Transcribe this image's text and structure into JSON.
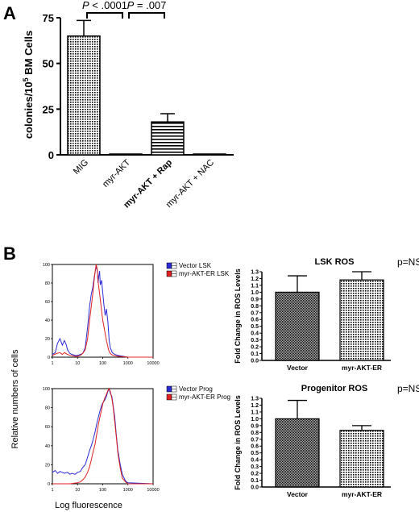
{
  "panel_labels": {
    "a": "A",
    "b": "B"
  },
  "colors": {
    "blue": "#2b2bd6",
    "red": "#e02020",
    "ink": "#000000"
  },
  "chart_data": [
    {
      "id": "colonies",
      "type": "bar",
      "ylabel_pre": "colonies/10",
      "ylabel_sup": "5",
      "ylabel_post": " BM Cells",
      "categories": [
        "MIG",
        "myr-AKT",
        "myr-AKT + Rap",
        "myr-AKT + NAC"
      ],
      "values": [
        65,
        0.3,
        18,
        0.2
      ],
      "errors": [
        8.5,
        0,
        4.5,
        0
      ],
      "patterns": [
        "dots",
        "none",
        "hlines",
        "none"
      ],
      "yticks": [
        "0",
        "25",
        "50",
        "75"
      ],
      "ylim": [
        0,
        75
      ],
      "annotations": [
        {
          "p_italic": "P",
          "rest": " < .0001",
          "from": 0,
          "to": 1
        },
        {
          "p_italic": "P",
          "rest": " = .007",
          "from": 1,
          "to": 2
        }
      ]
    },
    {
      "id": "lsk-hist",
      "type": "line",
      "ylabel": "Relative numbers of cells",
      "xlabel": "Log fluorescence",
      "xticks": [
        "1",
        "10",
        "100",
        "1000",
        "10000"
      ],
      "yticks": [
        "0",
        "20",
        "40",
        "60",
        "80",
        "100"
      ],
      "series": [
        {
          "name": "Vector LSK",
          "color": "#2b2bd6",
          "points": [
            [
              1,
              3
            ],
            [
              1.3,
              5
            ],
            [
              1.6,
              15
            ],
            [
              2,
              20
            ],
            [
              2.5,
              13
            ],
            [
              3,
              18
            ],
            [
              3.5,
              14
            ],
            [
              4,
              8
            ],
            [
              5,
              4
            ],
            [
              6,
              3
            ],
            [
              8,
              2
            ],
            [
              10,
              2
            ],
            [
              13,
              3
            ],
            [
              16,
              4
            ],
            [
              20,
              10
            ],
            [
              25,
              32
            ],
            [
              30,
              55
            ],
            [
              35,
              68
            ],
            [
              40,
              75
            ],
            [
              45,
              85
            ],
            [
              50,
              92
            ],
            [
              55,
              97
            ],
            [
              60,
              95
            ],
            [
              65,
              80
            ],
            [
              70,
              88
            ],
            [
              75,
              93
            ],
            [
              80,
              78
            ],
            [
              90,
              83
            ],
            [
              100,
              70
            ],
            [
              110,
              58
            ],
            [
              125,
              45
            ],
            [
              140,
              52
            ],
            [
              160,
              38
            ],
            [
              180,
              18
            ],
            [
              200,
              10
            ],
            [
              240,
              5
            ],
            [
              300,
              3
            ],
            [
              400,
              2
            ],
            [
              1000,
              0
            ],
            [
              10000,
              0
            ]
          ]
        },
        {
          "name": "myr-AKT-ER LSK",
          "color": "#e02020",
          "points": [
            [
              1,
              2
            ],
            [
              1.5,
              4
            ],
            [
              2,
              5
            ],
            [
              2.5,
              3
            ],
            [
              3,
              5
            ],
            [
              4,
              3
            ],
            [
              5,
              2
            ],
            [
              8,
              1
            ],
            [
              10,
              1
            ],
            [
              13,
              2
            ],
            [
              16,
              4
            ],
            [
              20,
              8
            ],
            [
              25,
              20
            ],
            [
              30,
              40
            ],
            [
              35,
              55
            ],
            [
              40,
              68
            ],
            [
              45,
              82
            ],
            [
              50,
              93
            ],
            [
              55,
              100
            ],
            [
              60,
              95
            ],
            [
              65,
              82
            ],
            [
              70,
              75
            ],
            [
              80,
              62
            ],
            [
              90,
              50
            ],
            [
              100,
              40
            ],
            [
              120,
              28
            ],
            [
              140,
              18
            ],
            [
              170,
              8
            ],
            [
              200,
              4
            ],
            [
              250,
              2
            ],
            [
              400,
              1
            ],
            [
              1000,
              0
            ],
            [
              10000,
              0
            ]
          ]
        }
      ]
    },
    {
      "id": "prog-hist",
      "type": "line",
      "xticks": [
        "1",
        "10",
        "100",
        "1000",
        "10000"
      ],
      "yticks": [
        "0",
        "20",
        "40",
        "60",
        "80",
        "100"
      ],
      "series": [
        {
          "name": "Vector Prog",
          "color": "#2b2bd6",
          "points": [
            [
              1,
              12
            ],
            [
              1.3,
              14
            ],
            [
              1.6,
              11
            ],
            [
              2,
              13
            ],
            [
              2.5,
              12
            ],
            [
              3,
              11
            ],
            [
              4,
              12
            ],
            [
              5,
              10
            ],
            [
              6,
              11
            ],
            [
              8,
              10
            ],
            [
              10,
              12
            ],
            [
              13,
              13
            ],
            [
              16,
              17
            ],
            [
              20,
              20
            ],
            [
              25,
              28
            ],
            [
              30,
              35
            ],
            [
              35,
              40
            ],
            [
              40,
              45
            ],
            [
              50,
              55
            ],
            [
              60,
              65
            ],
            [
              70,
              72
            ],
            [
              80,
              78
            ],
            [
              90,
              82
            ],
            [
              100,
              85
            ],
            [
              120,
              88
            ],
            [
              140,
              92
            ],
            [
              160,
              97
            ],
            [
              180,
              100
            ],
            [
              200,
              95
            ],
            [
              230,
              92
            ],
            [
              260,
              82
            ],
            [
              300,
              70
            ],
            [
              350,
              50
            ],
            [
              400,
              35
            ],
            [
              500,
              20
            ],
            [
              600,
              10
            ],
            [
              800,
              3
            ],
            [
              1000,
              1
            ],
            [
              10000,
              0
            ]
          ]
        },
        {
          "name": "myr-AKT-ER Prog",
          "color": "#e02020",
          "points": [
            [
              1,
              0
            ],
            [
              5,
              0
            ],
            [
              10,
              1
            ],
            [
              13,
              2
            ],
            [
              16,
              4
            ],
            [
              20,
              7
            ],
            [
              25,
              12
            ],
            [
              30,
              18
            ],
            [
              35,
              25
            ],
            [
              40,
              32
            ],
            [
              50,
              42
            ],
            [
              60,
              55
            ],
            [
              70,
              65
            ],
            [
              80,
              72
            ],
            [
              90,
              78
            ],
            [
              100,
              84
            ],
            [
              120,
              90
            ],
            [
              140,
              94
            ],
            [
              160,
              98
            ],
            [
              180,
              100
            ],
            [
              200,
              97
            ],
            [
              230,
              90
            ],
            [
              260,
              80
            ],
            [
              300,
              65
            ],
            [
              350,
              48
            ],
            [
              400,
              32
            ],
            [
              500,
              16
            ],
            [
              600,
              6
            ],
            [
              800,
              2
            ],
            [
              1000,
              0
            ],
            [
              10000,
              0
            ]
          ]
        }
      ]
    },
    {
      "id": "lsk-ros",
      "type": "bar",
      "title": "LSK ROS",
      "pvalue": "p=NS",
      "ylabel": "Fold Change in ROS Levels",
      "categories": [
        "Vector",
        "myr-AKT-ER"
      ],
      "values": [
        1.0,
        1.18
      ],
      "errors": [
        0.24,
        0.12
      ],
      "patterns": [
        "dense",
        "dots"
      ],
      "yticks": [
        "0.0",
        "0.1",
        "0.2",
        "0.3",
        "0.4",
        "0.5",
        "0.6",
        "0.7",
        "0.8",
        "0.9",
        "1.0",
        "1.1",
        "1.2",
        "1.3"
      ],
      "ylim": [
        0,
        1.3
      ]
    },
    {
      "id": "prog-ros",
      "type": "bar",
      "title": "Progenitor ROS",
      "pvalue": "p=NS",
      "ylabel": "Fold Change in ROS Levels",
      "categories": [
        "Vector",
        "myr-AKT-ER"
      ],
      "values": [
        1.0,
        0.83
      ],
      "errors": [
        0.27,
        0.07
      ],
      "patterns": [
        "dense",
        "dots"
      ],
      "yticks": [
        "0.0",
        "0.1",
        "0.2",
        "0.3",
        "0.4",
        "0.5",
        "0.6",
        "0.7",
        "0.8",
        "0.9",
        "1.0",
        "1.1",
        "1.2",
        "1.3"
      ],
      "ylim": [
        0,
        1.3
      ]
    }
  ]
}
